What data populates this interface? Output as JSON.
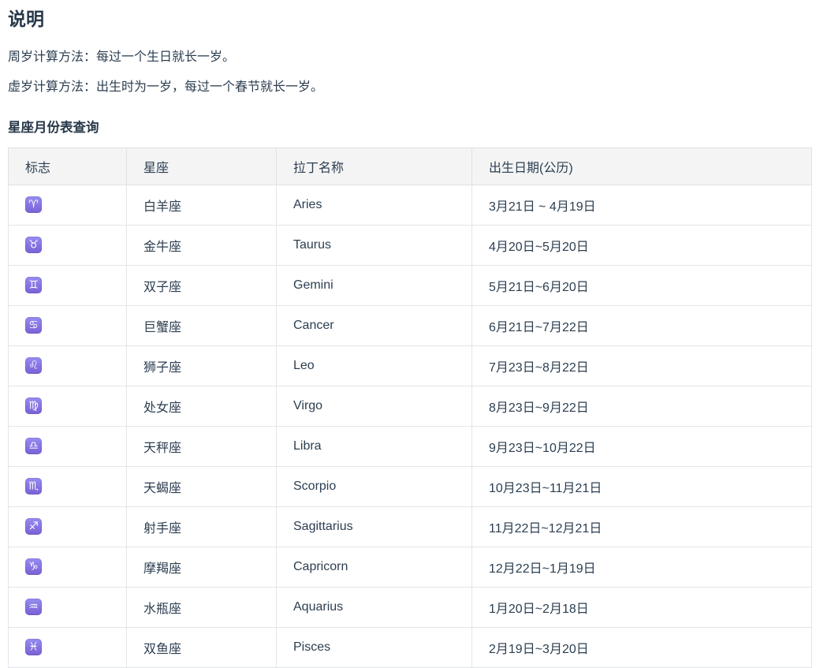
{
  "page": {
    "title": "说明",
    "notes": [
      "周岁计算方法：每过一个生日就长一岁。",
      "虚岁计算方法：出生时为一岁，每过一个春节就长一岁。"
    ],
    "section_title": "星座月份表查询"
  },
  "table": {
    "headers": [
      "标志",
      "星座",
      "拉丁名称",
      "出生日期(公历)"
    ],
    "rows": [
      {
        "icon": "aries-icon",
        "symbol": "♈",
        "name": "白羊座",
        "latin": "Aries",
        "dates": "3月21日 ~ 4月19日"
      },
      {
        "icon": "taurus-icon",
        "symbol": "♉",
        "name": "金牛座",
        "latin": "Taurus",
        "dates": "4月20日~5月20日"
      },
      {
        "icon": "gemini-icon",
        "symbol": "♊",
        "name": "双子座",
        "latin": "Gemini",
        "dates": "5月21日~6月20日"
      },
      {
        "icon": "cancer-icon",
        "symbol": "♋",
        "name": "巨蟹座",
        "latin": "Cancer",
        "dates": "6月21日~7月22日"
      },
      {
        "icon": "leo-icon",
        "symbol": "♌",
        "name": "狮子座",
        "latin": "Leo",
        "dates": "7月23日~8月22日"
      },
      {
        "icon": "virgo-icon",
        "symbol": "♍",
        "name": "处女座",
        "latin": "Virgo",
        "dates": "8月23日~9月22日"
      },
      {
        "icon": "libra-icon",
        "symbol": "♎",
        "name": "天秤座",
        "latin": "Libra",
        "dates": "9月23日~10月22日"
      },
      {
        "icon": "scorpio-icon",
        "symbol": "♏",
        "name": "天蝎座",
        "latin": "Scorpio",
        "dates": "10月23日~11月21日"
      },
      {
        "icon": "sagittarius-icon",
        "symbol": "♐",
        "name": "射手座",
        "latin": "Sagittarius",
        "dates": "11月22日~12月21日"
      },
      {
        "icon": "capricorn-icon",
        "symbol": "♑",
        "name": "摩羯座",
        "latin": "Capricorn",
        "dates": "12月22日~1月19日"
      },
      {
        "icon": "aquarius-icon",
        "symbol": "♒",
        "name": "水瓶座",
        "latin": "Aquarius",
        "dates": "1月20日~2月18日"
      },
      {
        "icon": "pisces-icon",
        "symbol": "♓",
        "name": "双鱼座",
        "latin": "Pisces",
        "dates": "2月19日~3月20日"
      }
    ]
  },
  "colors": {
    "text": "#2c3e50",
    "table_header_bg": "#f4f4f5",
    "table_border": "#e3e5e8",
    "badge_purple_top": "#958DF0",
    "badge_purple_bottom": "#7A61D4"
  }
}
